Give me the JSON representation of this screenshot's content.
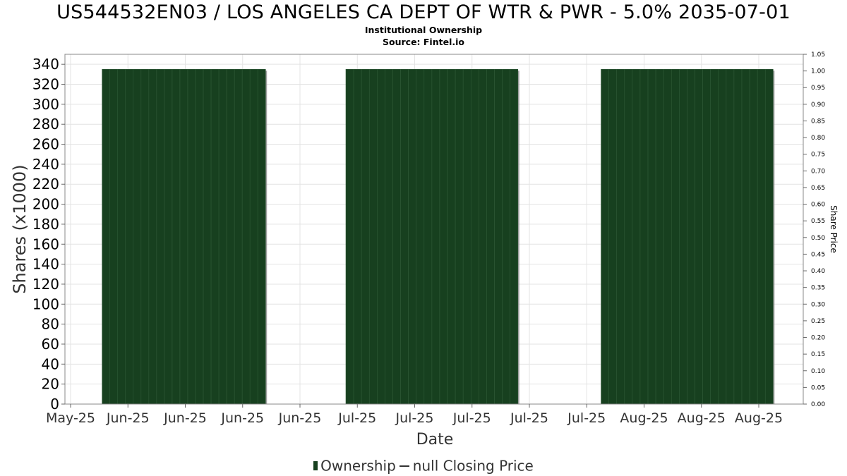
{
  "chart_data": {
    "type": "bar",
    "title": "US544532EN03 / LOS ANGELES CA DEPT OF WTR & PWR - 5.0% 2035-07-01",
    "subtitle": [
      "Institutional Ownership",
      "Source: Fintel.io"
    ],
    "xlabel": "Date",
    "ylabel": "Shares (x1000)",
    "y2label": "Share Price",
    "x_tick_labels": [
      "May-25",
      "Jun-25",
      "Jun-25",
      "Jun-25",
      "Jun-25",
      "Jul-25",
      "Jul-25",
      "Jul-25",
      "Jul-25",
      "Jul-25",
      "Aug-25",
      "Aug-25",
      "Aug-25"
    ],
    "y_ticks": [
      0,
      20,
      40,
      60,
      80,
      100,
      120,
      140,
      160,
      180,
      200,
      220,
      240,
      260,
      280,
      300,
      320,
      340
    ],
    "y2_ticks": [
      "0.00",
      "0.05",
      "0.10",
      "0.15",
      "0.20",
      "0.25",
      "0.30",
      "0.35",
      "0.40",
      "0.45",
      "0.50",
      "0.55",
      "0.60",
      "0.65",
      "0.70",
      "0.75",
      "0.80",
      "0.85",
      "0.90",
      "0.95",
      "1.00",
      "1.05"
    ],
    "ylim": [
      0,
      350
    ],
    "y2lim": [
      0,
      1.05
    ],
    "grid": true,
    "bar_color": "#17401f",
    "series": [
      {
        "name": "Ownership",
        "segments": [
          {
            "start_tick": 0.55,
            "end_tick": 3.4,
            "value": 335
          },
          {
            "start_tick": 4.8,
            "end_tick": 7.8,
            "value": 335
          },
          {
            "start_tick": 9.25,
            "end_tick": 12.25,
            "value": 335
          }
        ]
      },
      {
        "name": "null Closing Price",
        "values": []
      }
    ],
    "legend": {
      "position": "bottom",
      "items": [
        "Ownership",
        "null Closing Price"
      ]
    }
  }
}
